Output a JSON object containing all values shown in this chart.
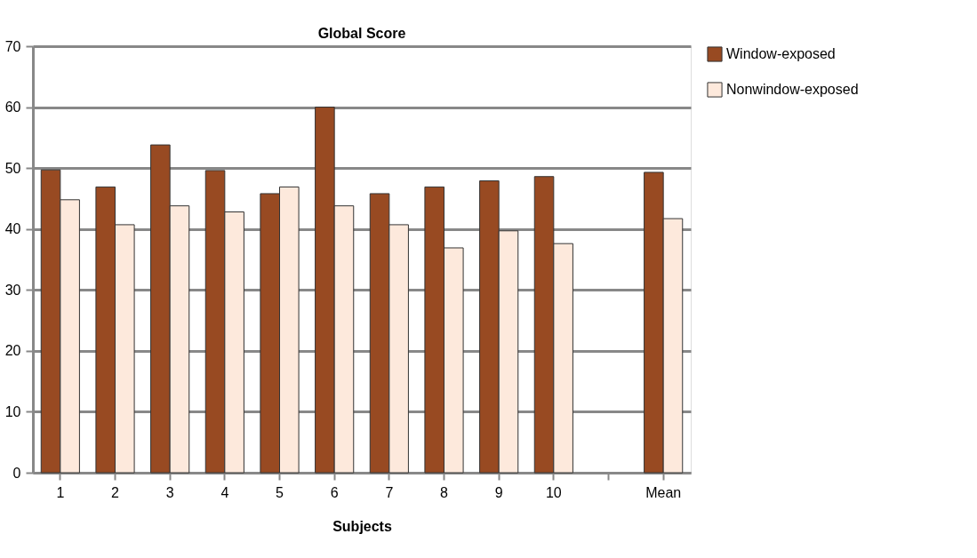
{
  "chart_data": {
    "type": "bar",
    "title": "Global Score",
    "xlabel": "Subjects",
    "categories": [
      "1",
      "2",
      "3",
      "4",
      "5",
      "6",
      "7",
      "8",
      "9",
      "10",
      null,
      "Mean"
    ],
    "series": [
      {
        "name": "Window-exposed",
        "color": "#984a22",
        "values": [
          49.7,
          46.9,
          53.8,
          49.6,
          45.8,
          60,
          45.8,
          46.9,
          47.9,
          48.6,
          null,
          49.3
        ]
      },
      {
        "name": "Nonwindow-exposed",
        "color": "#fde9dc",
        "values": [
          44.8,
          40.7,
          43.8,
          42.8,
          46.9,
          43.8,
          40.7,
          36.9,
          39.7,
          37.6,
          null,
          41.7
        ]
      }
    ],
    "ylim": [
      0,
      70
    ],
    "yticks": [
      0,
      10,
      20,
      30,
      40,
      50,
      60,
      70
    ],
    "grid": "y",
    "legend": "right"
  }
}
